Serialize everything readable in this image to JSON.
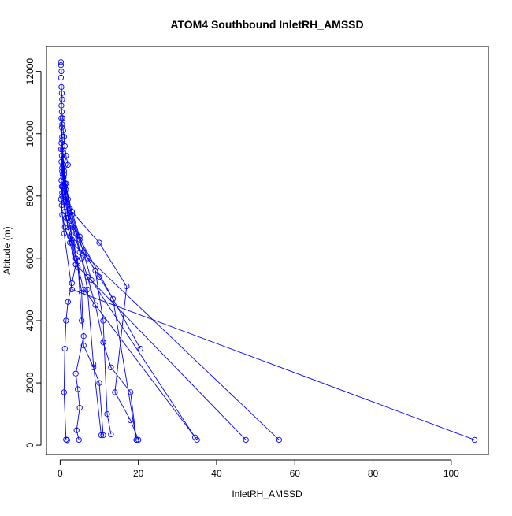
{
  "chart_data": {
    "type": "line",
    "title": "ATOM4 Southbound InletRH_AMSSD",
    "xlabel": "InletRH_AMSSD",
    "ylabel": "Altitude (m)",
    "xlim": [
      -3.5,
      109.5
    ],
    "ylim": [
      -300,
      12800
    ],
    "xticks": [
      0,
      20,
      40,
      60,
      80,
      100
    ],
    "yticks": [
      0,
      2000,
      4000,
      6000,
      8000,
      10000,
      12000
    ],
    "grid": false,
    "marker": "open-circle",
    "series_color": "#0000ff",
    "series": [
      {
        "x": [
          0.2,
          0.2,
          0.3,
          0.2,
          0.3,
          0.4,
          0.5,
          0.3,
          0.4,
          0.6,
          0.5,
          0.8,
          1.0,
          1.2,
          1.5,
          2.0,
          1.0,
          0.8,
          0.6,
          0.5,
          0.4,
          0.5,
          1.2,
          2.5,
          4.0,
          3.0,
          2.0,
          1.5,
          1.2,
          1.0,
          1.5,
          1.8
        ],
        "y": [
          12300,
          12200,
          12000,
          11800,
          11500,
          11300,
          11100,
          10900,
          10700,
          10500,
          10300,
          10100,
          9900,
          9600,
          9300,
          9000,
          8800,
          8600,
          8300,
          8000,
          7700,
          7400,
          7000,
          6500,
          5800,
          5200,
          4600,
          4000,
          3100,
          1700,
          180,
          160
        ]
      },
      {
        "x": [
          0.3,
          0.5,
          0.8,
          1.5,
          3.0,
          5.0,
          7.0,
          10.0,
          13.5,
          19.5
        ],
        "y": [
          10500,
          9800,
          9000,
          8200,
          7500,
          6700,
          6000,
          5400,
          4700,
          170
        ]
      },
      {
        "x": [
          0.4,
          0.6,
          1.0,
          2.0,
          3.5,
          6.0,
          9.0,
          11.0,
          12.0,
          13.0
        ],
        "y": [
          10200,
          9500,
          8700,
          7900,
          7000,
          6200,
          5600,
          4000,
          1000,
          350
        ]
      },
      {
        "x": [
          0.5,
          0.8,
          1.5,
          2.5,
          4.0,
          5.5,
          7.0,
          8.5,
          10.5
        ],
        "y": [
          9900,
          9200,
          8400,
          7600,
          6800,
          6000,
          5000,
          2600,
          320
        ]
      },
      {
        "x": [
          0.3,
          0.7,
          1.2,
          2.0,
          3.0,
          4.5,
          5.5,
          6.0,
          4.0,
          4.5,
          5.0,
          4.2,
          4.8
        ],
        "y": [
          9700,
          9000,
          8300,
          7400,
          6600,
          5900,
          4000,
          3500,
          2300,
          1800,
          1200,
          480,
          170
        ]
      },
      {
        "x": [
          0.2,
          0.5,
          1.0,
          2.0,
          3.5,
          4.5,
          5.5,
          6.0,
          8.5,
          10.0,
          11.0
        ],
        "y": [
          9500,
          8800,
          8100,
          7300,
          6500,
          5700,
          4900,
          3200,
          2500,
          2000,
          320
        ]
      },
      {
        "x": [
          0.4,
          0.9,
          1.8,
          3.2,
          5.0,
          7.0,
          9.0,
          11.0,
          13.0,
          18.0,
          19.5
        ],
        "y": [
          9300,
          8600,
          7800,
          7000,
          6200,
          5400,
          4500,
          3300,
          2500,
          1700,
          170
        ]
      },
      {
        "x": [
          0.3,
          1.2,
          3.0,
          10.0,
          17.0,
          14.0,
          18.0,
          20.0
        ],
        "y": [
          9100,
          8400,
          7500,
          6500,
          5100,
          1700,
          800,
          170
        ]
      },
      {
        "x": [
          0.5,
          1.0,
          2.5,
          20.5
        ],
        "y": [
          8900,
          8200,
          7200,
          3100
        ]
      },
      {
        "x": [
          0.6,
          1.5,
          3.0,
          5.0,
          8.0,
          34.5
        ],
        "y": [
          8700,
          8000,
          7400,
          6600,
          5300,
          250
        ]
      },
      {
        "x": [
          0.3,
          1.0,
          2.0,
          4.0,
          6.0,
          35.0
        ],
        "y": [
          8500,
          7800,
          7000,
          6000,
          5000,
          170
        ]
      },
      {
        "x": [
          0.4,
          1.2,
          2.5,
          4.0,
          47.5
        ],
        "y": [
          8300,
          7500,
          6700,
          5800,
          170
        ]
      },
      {
        "x": [
          0.5,
          1.5,
          3.0,
          56.0
        ],
        "y": [
          8100,
          7300,
          6500,
          170
        ]
      },
      {
        "x": [
          0.2,
          1.0,
          3.0,
          106.0
        ],
        "y": [
          7900,
          6800,
          5000,
          170
        ]
      }
    ]
  }
}
